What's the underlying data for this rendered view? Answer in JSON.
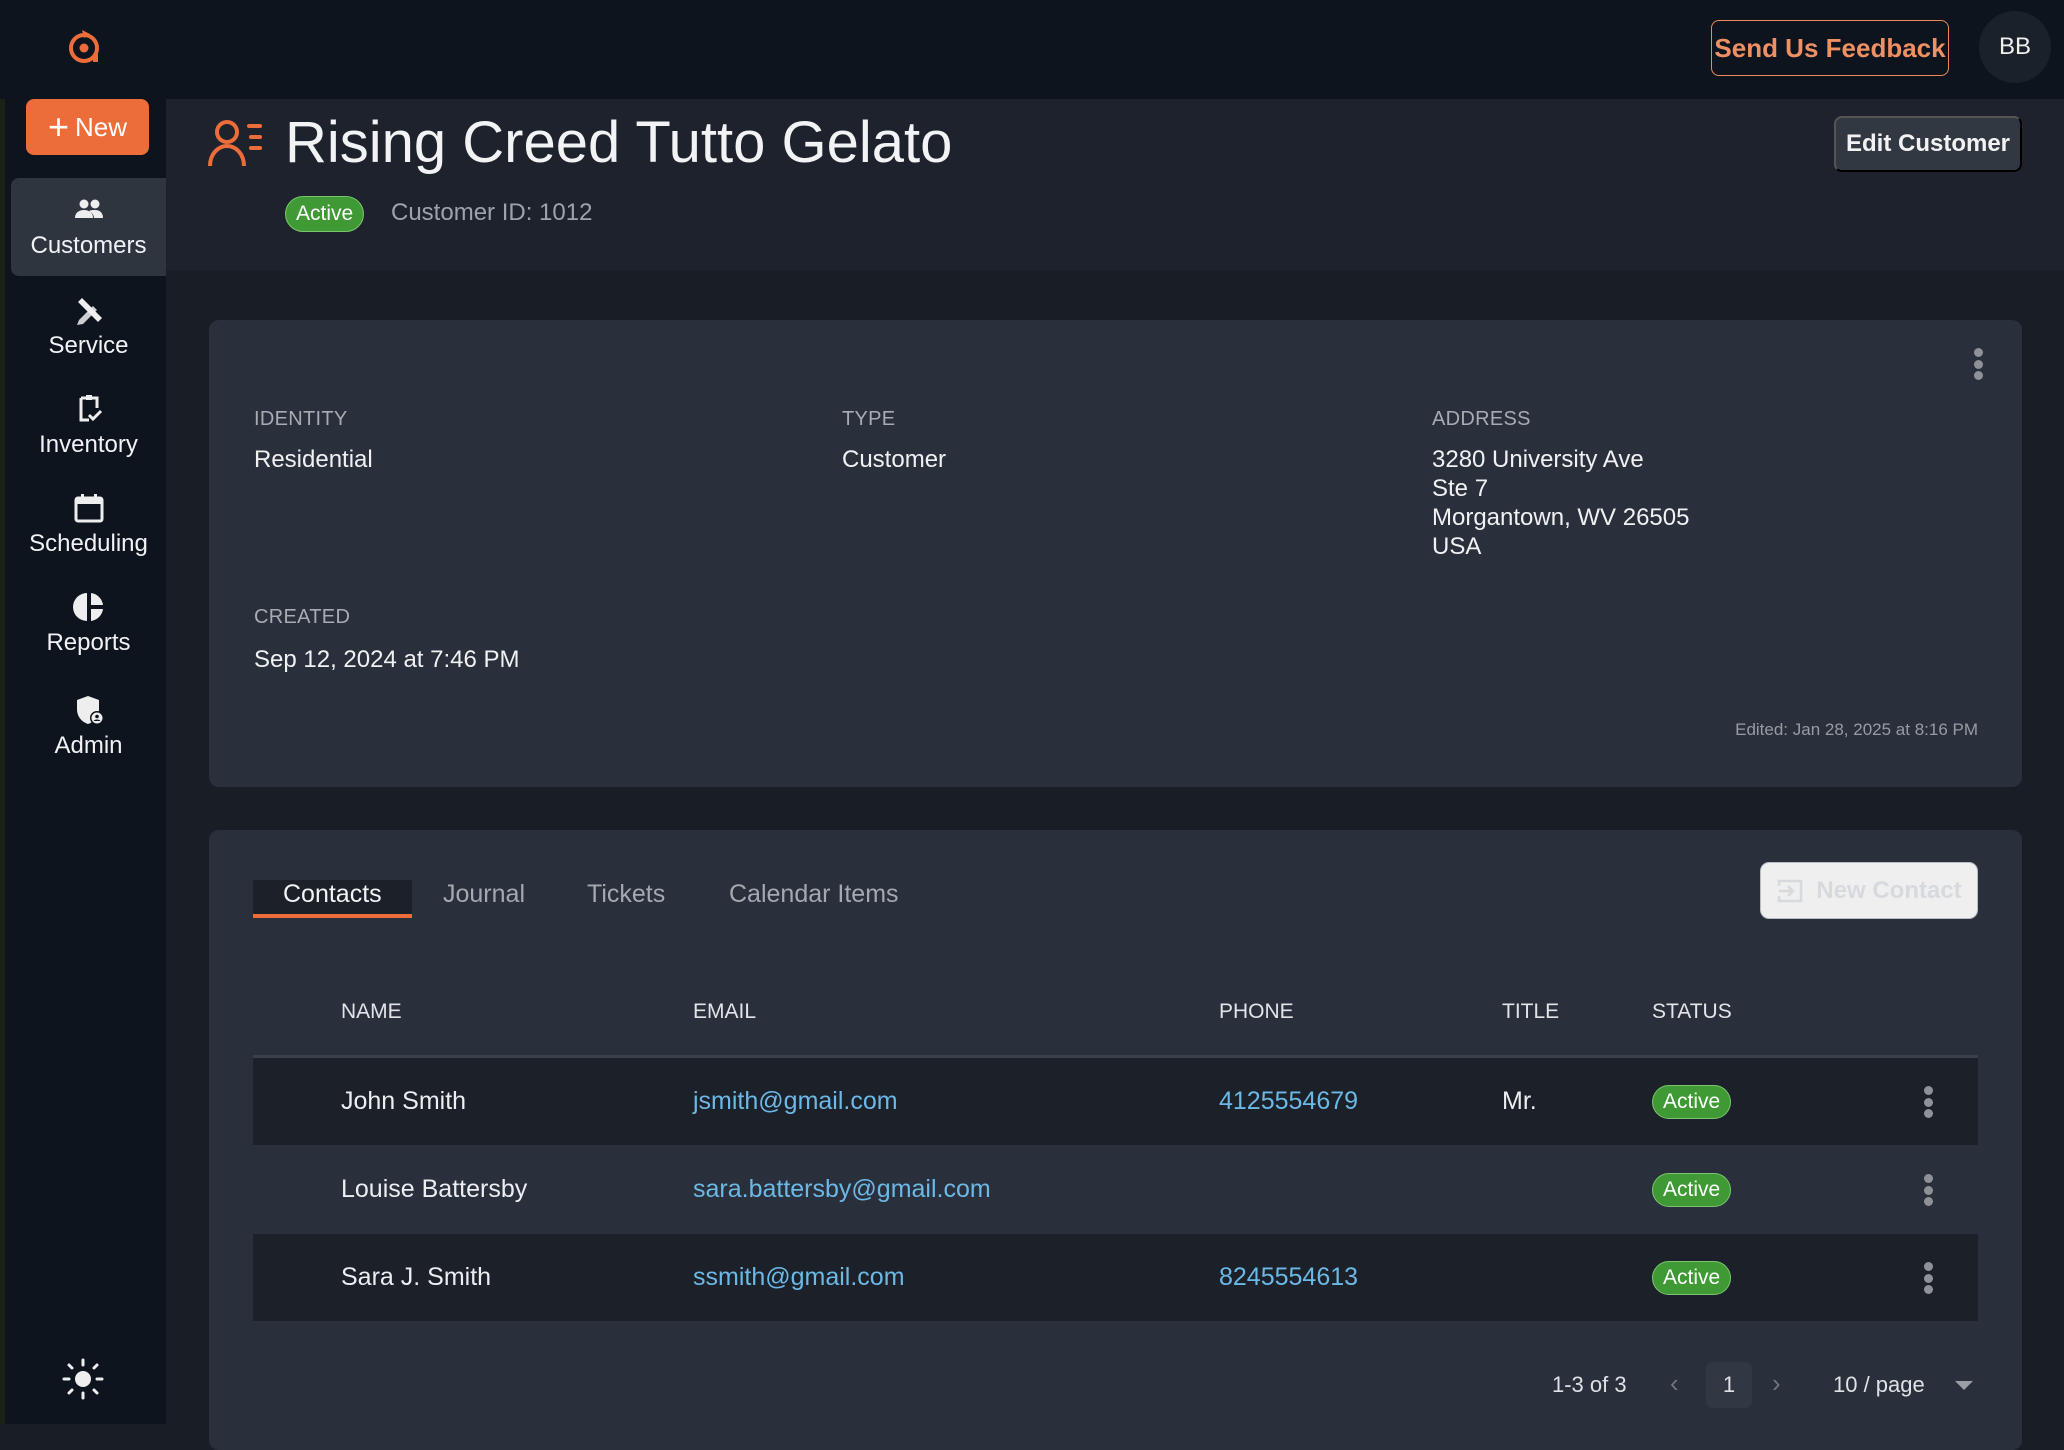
{
  "topbar": {
    "feedback_label": "Send Us Feedback",
    "avatar_initials": "BB"
  },
  "sidebar": {
    "new_label": "New",
    "items": [
      {
        "label": "Customers",
        "icon": "users-icon",
        "active": true
      },
      {
        "label": "Service",
        "icon": "tools-icon"
      },
      {
        "label": "Inventory",
        "icon": "clipboard-check-icon"
      },
      {
        "label": "Scheduling",
        "icon": "calendar-icon"
      },
      {
        "label": "Reports",
        "icon": "pie-chart-icon"
      },
      {
        "label": "Admin",
        "icon": "shield-user-icon"
      }
    ],
    "theme_icon": "sun-icon"
  },
  "header": {
    "title": "Rising Creed Tutto Gelato",
    "status": "Active",
    "customer_id": "Customer ID: 1012",
    "edit_label": "Edit Customer"
  },
  "details": {
    "identity_label": "IDENTITY",
    "identity": "Residential",
    "type_label": "TYPE",
    "type": "Customer",
    "address_label": "ADDRESS",
    "address": [
      "3280 University Ave",
      "Ste 7",
      "Morgantown, WV 26505",
      "USA"
    ],
    "created_label": "CREATED",
    "created": "Sep 12, 2024 at 7:46 PM",
    "edited": "Edited: Jan 28, 2025 at 8:16 PM"
  },
  "contacts": {
    "tabs": [
      "Contacts",
      "Journal",
      "Tickets",
      "Calendar Items"
    ],
    "new_contact_label": "New Contact",
    "columns": [
      "NAME",
      "EMAIL",
      "PHONE",
      "TITLE",
      "STATUS"
    ],
    "rows": [
      {
        "name": "John Smith",
        "email": "jsmith@gmail.com",
        "phone": "4125554679",
        "title": "Mr.",
        "status": "Active"
      },
      {
        "name": "Louise Battersby",
        "email": "sara.battersby@gmail.com",
        "phone": "",
        "title": "",
        "status": "Active"
      },
      {
        "name": "Sara J. Smith",
        "email": "ssmith@gmail.com",
        "phone": "8245554613",
        "title": "",
        "status": "Active"
      }
    ],
    "pagination": {
      "range": "1-3 of 3",
      "page": "1",
      "page_size": "10 / page"
    }
  },
  "colors": {
    "accent": "#ec6d3a",
    "active_green": "#3f9a35",
    "link": "#6cb8e6"
  }
}
